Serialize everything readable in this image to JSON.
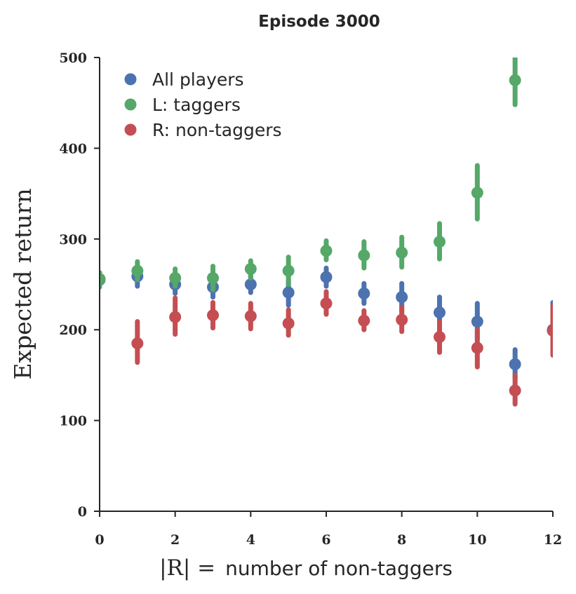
{
  "chart_data": {
    "type": "scatter",
    "title": "Episode 3000",
    "xlabel_math": "|R| =",
    "xlabel_text": "number of non-taggers",
    "ylabel": "Expected return",
    "xlim": [
      0,
      12
    ],
    "ylim": [
      0,
      500
    ],
    "xticks": [
      0,
      2,
      4,
      6,
      8,
      10,
      12
    ],
    "yticks": [
      0,
      100,
      200,
      300,
      400,
      500
    ],
    "legend_position": "top-left",
    "series": [
      {
        "name": "All players",
        "color": "#4c72b0",
        "points": [
          {
            "x": 0,
            "y": 255,
            "lo": 249,
            "hi": 261
          },
          {
            "x": 1,
            "y": 259,
            "lo": 248,
            "hi": 270
          },
          {
            "x": 2,
            "y": 250,
            "lo": 240,
            "hi": 261
          },
          {
            "x": 3,
            "y": 247,
            "lo": 236,
            "hi": 259
          },
          {
            "x": 4,
            "y": 250,
            "lo": 241,
            "hi": 260
          },
          {
            "x": 5,
            "y": 241,
            "lo": 227,
            "hi": 255
          },
          {
            "x": 6,
            "y": 258,
            "lo": 248,
            "hi": 268
          },
          {
            "x": 7,
            "y": 240,
            "lo": 229,
            "hi": 251
          },
          {
            "x": 8,
            "y": 236,
            "lo": 220,
            "hi": 251
          },
          {
            "x": 9,
            "y": 219,
            "lo": 202,
            "hi": 236
          },
          {
            "x": 10,
            "y": 209,
            "lo": 190,
            "hi": 229
          },
          {
            "x": 11,
            "y": 162,
            "lo": 146,
            "hi": 178
          },
          {
            "x": 12,
            "y": 200,
            "lo": 172,
            "hi": 230
          }
        ]
      },
      {
        "name": "L: taggers",
        "color": "#55a868",
        "points": [
          {
            "x": 0,
            "y": 256,
            "lo": 247,
            "hi": 263
          },
          {
            "x": 1,
            "y": 265,
            "lo": 255,
            "hi": 275
          },
          {
            "x": 2,
            "y": 257,
            "lo": 248,
            "hi": 267
          },
          {
            "x": 3,
            "y": 257,
            "lo": 244,
            "hi": 270
          },
          {
            "x": 4,
            "y": 267,
            "lo": 257,
            "hi": 276
          },
          {
            "x": 5,
            "y": 265,
            "lo": 250,
            "hi": 280
          },
          {
            "x": 6,
            "y": 287,
            "lo": 277,
            "hi": 298
          },
          {
            "x": 7,
            "y": 282,
            "lo": 268,
            "hi": 297
          },
          {
            "x": 8,
            "y": 285,
            "lo": 269,
            "hi": 302
          },
          {
            "x": 9,
            "y": 297,
            "lo": 278,
            "hi": 317
          },
          {
            "x": 10,
            "y": 351,
            "lo": 322,
            "hi": 381
          },
          {
            "x": 11,
            "y": 475,
            "lo": 448,
            "hi": 500
          }
        ]
      },
      {
        "name": "R: non-taggers",
        "color": "#c44e52",
        "points": [
          {
            "x": 1,
            "y": 185,
            "lo": 164,
            "hi": 209
          },
          {
            "x": 2,
            "y": 214,
            "lo": 195,
            "hi": 235
          },
          {
            "x": 3,
            "y": 216,
            "lo": 202,
            "hi": 230
          },
          {
            "x": 4,
            "y": 215,
            "lo": 201,
            "hi": 229
          },
          {
            "x": 5,
            "y": 207,
            "lo": 194,
            "hi": 222
          },
          {
            "x": 6,
            "y": 229,
            "lo": 217,
            "hi": 242
          },
          {
            "x": 7,
            "y": 210,
            "lo": 200,
            "hi": 221
          },
          {
            "x": 8,
            "y": 211,
            "lo": 198,
            "hi": 225
          },
          {
            "x": 9,
            "y": 192,
            "lo": 175,
            "hi": 209
          },
          {
            "x": 10,
            "y": 180,
            "lo": 159,
            "hi": 200
          },
          {
            "x": 11,
            "y": 133,
            "lo": 118,
            "hi": 150
          },
          {
            "x": 12,
            "y": 199,
            "lo": 172,
            "hi": 226
          }
        ]
      }
    ]
  }
}
